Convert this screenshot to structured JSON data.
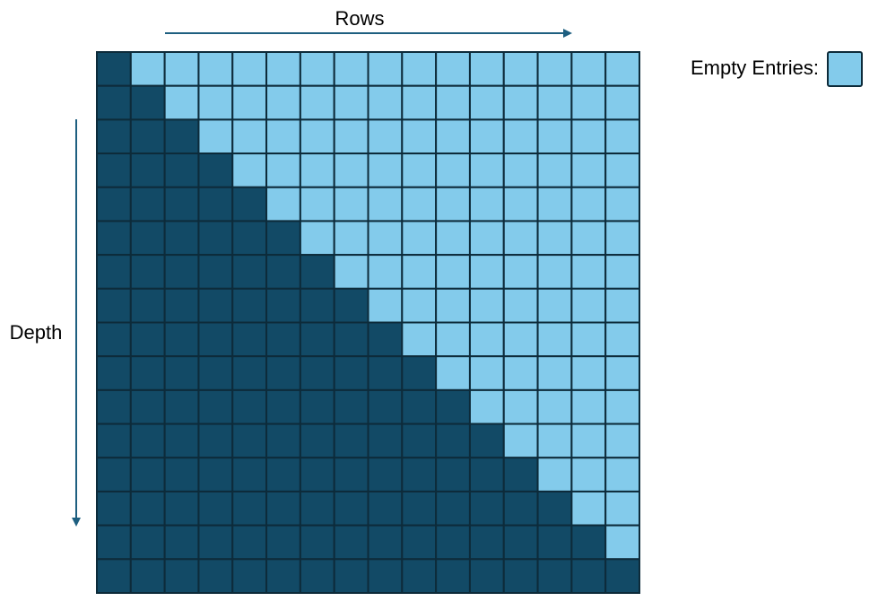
{
  "labels": {
    "rows": "Rows",
    "depth": "Depth",
    "legend": "Empty Entries:"
  },
  "grid": {
    "size": 16,
    "filled_rule": "lower-triangle-including-diagonal"
  },
  "colors": {
    "filled": "#124A66",
    "empty": "#83CBEB",
    "grid_line": "#0D2B3A",
    "arrow": "#1E5F80"
  }
}
